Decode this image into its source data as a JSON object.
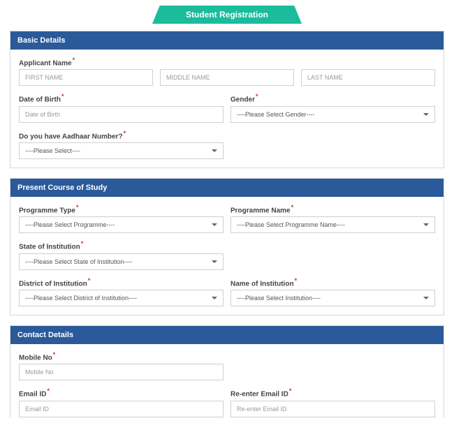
{
  "header": {
    "title": "Student Registration"
  },
  "sections": {
    "basic": {
      "title": "Basic Details",
      "applicant_label": "Applicant Name",
      "first_ph": "FIRST NAME",
      "middle_ph": "MIDDLE NAME",
      "last_ph": "LAST NAME",
      "dob_label": "Date of Birth",
      "dob_ph": "Date of Birth",
      "gender_label": "Gender",
      "gender_sel": "----Please Select Gender----",
      "aadhaar_label": "Do you have Aadhaar Number?",
      "aadhaar_sel": "----Please Select----"
    },
    "course": {
      "title": "Present Course of Study",
      "ptype_label": "Programme Type",
      "ptype_sel": "----Please Select Programme----",
      "pname_label": "Programme Name",
      "pname_sel": "----Please Select Programme Name----",
      "state_label": "State of Institution",
      "state_sel": "----Please Select State of Institution----",
      "district_label": "District of Institution",
      "district_sel": "----Please Select District of Institution----",
      "inst_label": "Name of Institution",
      "inst_sel": "----Please Select Institution----"
    },
    "contact": {
      "title": "Contact Details",
      "mobile_label": "Mobile No",
      "mobile_ph": "Mobile No",
      "email_label": "Email ID",
      "email_ph": "Email ID",
      "reemail_label": "Re-enter Email ID",
      "reemail_ph": "Re-enter Email ID"
    }
  }
}
